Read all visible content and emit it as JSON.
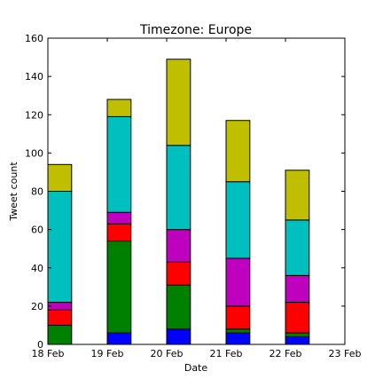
{
  "chart_data": {
    "type": "bar",
    "stacked": true,
    "title": "Timezone: Europe",
    "xlabel": "Date",
    "ylabel": "Tweet count",
    "categories": [
      "18 Feb",
      "19 Feb",
      "20 Feb",
      "21 Feb",
      "22 Feb"
    ],
    "x_ticks": [
      "18 Feb",
      "19 Feb",
      "20 Feb",
      "21 Feb",
      "22 Feb",
      "23 Feb"
    ],
    "ylim": [
      0,
      160
    ],
    "y_ticks": [
      0,
      20,
      40,
      60,
      80,
      100,
      120,
      140,
      160
    ],
    "grid": false,
    "legend": "none",
    "series": [
      {
        "color": "#0000ff",
        "values": [
          0,
          6,
          8,
          6,
          4
        ]
      },
      {
        "color": "#008000",
        "values": [
          10,
          48,
          23,
          2,
          2
        ]
      },
      {
        "color": "#ff0000",
        "values": [
          8,
          9,
          12,
          12,
          16
        ]
      },
      {
        "color": "#bf00bf",
        "values": [
          4,
          6,
          17,
          25,
          14
        ]
      },
      {
        "color": "#00bfbf",
        "values": [
          58,
          50,
          44,
          40,
          29
        ]
      },
      {
        "color": "#bfbf00",
        "values": [
          14,
          9,
          45,
          32,
          26
        ]
      }
    ]
  }
}
